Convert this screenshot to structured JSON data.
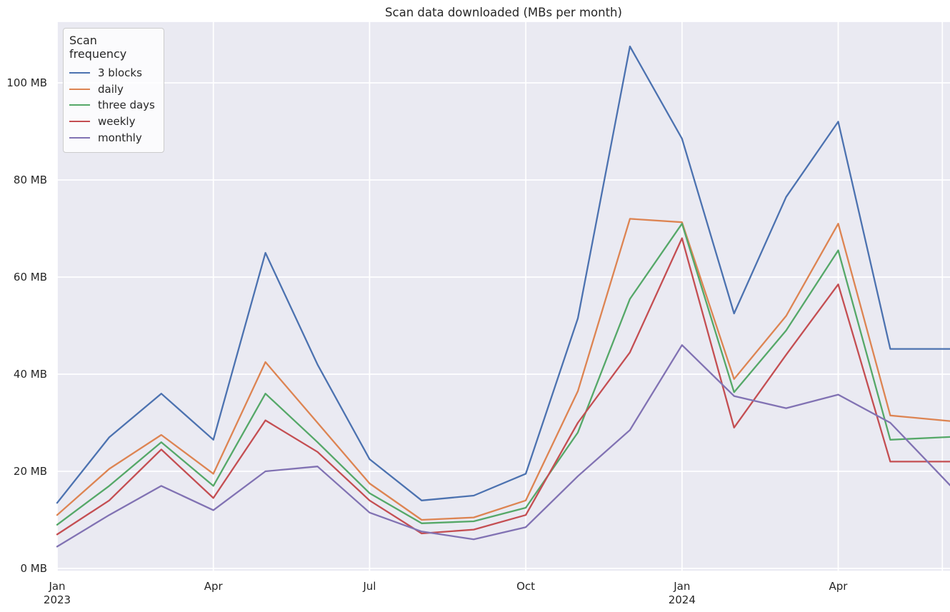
{
  "chart_data": {
    "type": "line",
    "title": "Scan data downloaded (MBs per month)",
    "legend_title": "Scan frequency",
    "legend_position": "upper left",
    "grid": true,
    "background": "#EAEAF2",
    "gridline_color": "#FFFFFF",
    "text_color": "#262626",
    "x": [
      "Jan 2023",
      "Feb 2023",
      "Mar 2023",
      "Apr 2023",
      "May 2023",
      "Jun 2023",
      "Jul 2023",
      "Aug 2023",
      "Sep 2023",
      "Oct 2023",
      "Nov 2023",
      "Dec 2023",
      "Jan 2024",
      "Feb 2024",
      "Mar 2024",
      "Apr 2024",
      "May 2024",
      "Jun 2024"
    ],
    "x_tick_labels": [
      {
        "label": "Jan",
        "sub": "2023",
        "month_index": 0
      },
      {
        "label": "Apr",
        "month_index": 3
      },
      {
        "label": "Jul",
        "month_index": 6
      },
      {
        "label": "Oct",
        "month_index": 9
      },
      {
        "label": "Jan",
        "sub": "2024",
        "month_index": 12
      },
      {
        "label": "Apr",
        "month_index": 15
      }
    ],
    "y_ticks": [
      {
        "value": 0,
        "label": "0 MB"
      },
      {
        "value": 20,
        "label": "20 MB"
      },
      {
        "value": 40,
        "label": "40 MB"
      },
      {
        "value": 60,
        "label": "60 MB"
      },
      {
        "value": 80,
        "label": "80 MB"
      },
      {
        "value": 100,
        "label": "100 MB"
      }
    ],
    "ylim": [
      -0.6,
      112.6
    ],
    "ylabel": "",
    "xlabel": "",
    "series": [
      {
        "name": "3 blocks",
        "color": "#4C72B0",
        "values": [
          13.5,
          27,
          36,
          26.5,
          65,
          42,
          22.5,
          14,
          15,
          19.5,
          51.5,
          107.5,
          88.5,
          52.5,
          76.5,
          92,
          45.2,
          45.2
        ]
      },
      {
        "name": "daily",
        "color": "#DD8452",
        "values": [
          11,
          20.5,
          27.5,
          19.5,
          42.5,
          30,
          17.5,
          10,
          10.5,
          14,
          36.5,
          72,
          71.3,
          39,
          52,
          71,
          31.5,
          30.5
        ]
      },
      {
        "name": "three days",
        "color": "#55A868",
        "values": [
          9,
          17,
          26,
          17,
          36,
          26,
          15.5,
          9.3,
          9.7,
          12.5,
          28,
          55.5,
          71,
          36.3,
          49,
          65.5,
          26.5,
          27
        ]
      },
      {
        "name": "weekly",
        "color": "#C44E52",
        "values": [
          7,
          14,
          24.5,
          14.5,
          30.5,
          24,
          14,
          7.2,
          8,
          11,
          30,
          44.5,
          68,
          29,
          44,
          58.5,
          22,
          22
        ]
      },
      {
        "name": "monthly",
        "color": "#8172B3",
        "values": [
          4.5,
          11,
          17,
          12,
          20,
          21,
          11.5,
          7.6,
          6,
          8.5,
          19,
          28.5,
          46,
          35.5,
          33,
          35.8,
          30,
          18.8
        ]
      }
    ]
  }
}
